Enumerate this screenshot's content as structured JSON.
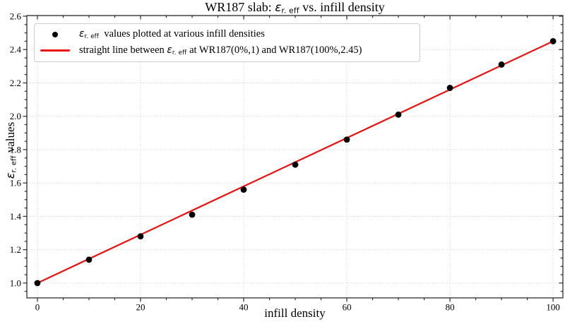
{
  "figure": {
    "title_parts": [
      {
        "text": "WR187 slab: "
      },
      {
        "eps": true,
        "sub": "r. eff"
      },
      {
        "text": " vs. infill density"
      }
    ],
    "xlabel": "infill density",
    "ylabel_parts": [
      {
        "eps": true,
        "sub": "r. eff"
      },
      {
        "text": " values"
      }
    ]
  },
  "legend": {
    "entries": [
      {
        "marker": "dot",
        "parts": [
          {
            "eps": true,
            "sub": "r. eff"
          },
          {
            "text": "  values plotted at various infill densities"
          }
        ]
      },
      {
        "marker": "line",
        "parts": [
          {
            "text": "straight line between "
          },
          {
            "eps": true,
            "sub": "r. eff"
          },
          {
            "text": " at WR187(0%,1) and WR187(100%,2.45)"
          }
        ]
      }
    ]
  },
  "chart_data": {
    "type": "scatter",
    "title": "WR187 slab: ε_r.eff vs. infill density",
    "xlabel": "infill density",
    "ylabel": "ε_r.eff values",
    "x": [
      0,
      10,
      20,
      30,
      40,
      50,
      60,
      70,
      80,
      90,
      100
    ],
    "y": [
      1.0,
      1.14,
      1.28,
      1.41,
      1.56,
      1.71,
      1.86,
      2.01,
      2.17,
      2.31,
      2.45
    ],
    "series_label": "ε_r.eff values plotted at various infill densities",
    "fit_line": {
      "x": [
        0,
        100
      ],
      "y": [
        1.0,
        2.45
      ],
      "label": "straight line between ε_r.eff at WR187(0%,1) and WR187(100%,2.45)"
    },
    "xlim": [
      -2.05,
      101.9
    ],
    "ylim": [
      0.911,
      2.604
    ],
    "xticks": [
      0,
      20,
      40,
      60,
      80,
      100
    ],
    "yticks": [
      1.0,
      1.2,
      1.4,
      1.6,
      1.8,
      2.0,
      2.2,
      2.4,
      2.6
    ],
    "x_minor_step": 5,
    "y_minor_step": 0.05,
    "grid": "dotted major gridlines both axes",
    "legend_position": "upper left"
  },
  "colors": {
    "marker": "#000000",
    "line": "#ee1111",
    "grid": "#c9c9c9",
    "spine": "#3c3c3c",
    "tick": "#2a2a2a",
    "legend_border": "#cccccc",
    "background": "#ffffff"
  }
}
